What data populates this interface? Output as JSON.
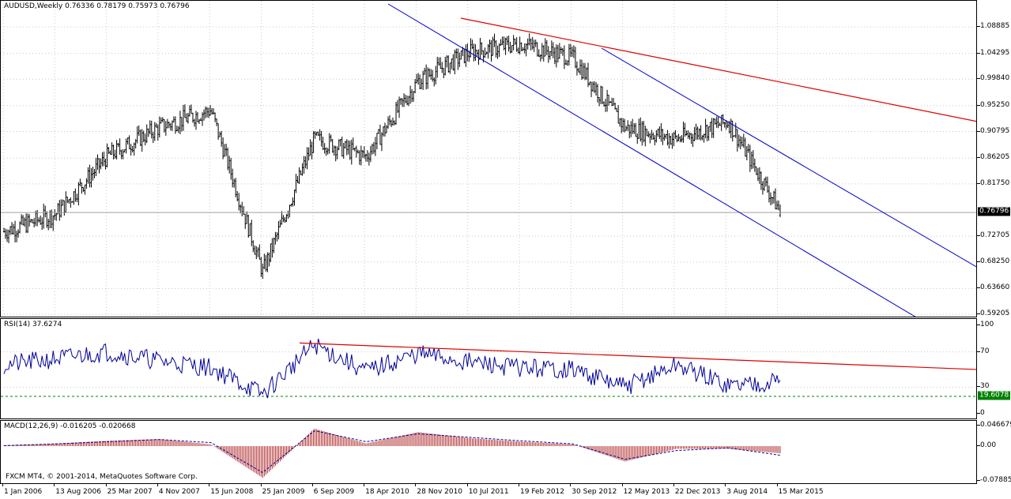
{
  "main": {
    "title": "AUDUSD,Weekly  0.76336 0.78179 0.75973 0.76796",
    "price_labels": [
      "1.08885",
      "1.04295",
      "0.99840",
      "0.95250",
      "0.90795",
      "0.86205",
      "0.81750",
      "0.72705",
      "0.68250",
      "0.63660",
      "0.59205"
    ],
    "current_price": "0.76796",
    "colors": {
      "candles": "#000000",
      "channel": "#0000cc",
      "resistance": "#dd0000",
      "grid": "#c8c8c8",
      "badge_bg": "#000000",
      "badge_fg": "#ffffff"
    }
  },
  "rsi": {
    "title": "RSI(14) 37.6274",
    "levels": [
      "100",
      "70",
      "30",
      "0"
    ],
    "current_value": "19.6078",
    "colors": {
      "line": "#000099",
      "trend": "#dd0000",
      "level_dash": "#008000",
      "badge_bg": "#008000"
    }
  },
  "macd": {
    "title": "MACD(12,26,9) -0.016205 -0.020668",
    "levels": [
      "0.046679",
      "0.00",
      "-0.078852"
    ],
    "copyright": "FXCM MT4, © 2001-2014, MetaQuotes Software Corp.",
    "colors": {
      "hist": "#a00000",
      "signal": "#000099"
    }
  },
  "time_axis": [
    "1 Jan 2006",
    "13 Aug 2006",
    "25 Mar 2007",
    "4 Nov 2007",
    "15 Jun 2008",
    "25 Jan 2009",
    "6 Sep 2009",
    "18 Apr 2010",
    "28 Nov 2010",
    "10 Jul 2011",
    "19 Feb 2012",
    "30 Sep 2012",
    "12 May 2013",
    "22 Dec 2013",
    "3 Aug 2014",
    "15 Mar 2015"
  ],
  "chart_data": [
    {
      "type": "candlestick",
      "title": "AUDUSD,Weekly",
      "x": [
        "1 Jan 2006",
        "13 Aug 2006",
        "25 Mar 2007",
        "4 Nov 2007",
        "15 Jun 2008",
        "25 Jan 2009",
        "6 Sep 2009",
        "18 Apr 2010",
        "28 Nov 2010",
        "10 Jul 2011",
        "19 Feb 2012",
        "30 Sep 2012",
        "12 May 2013",
        "22 Dec 2013",
        "3 Aug 2014",
        "15 Mar 2015"
      ],
      "close": [
        0.735,
        0.765,
        0.865,
        0.915,
        0.945,
        0.665,
        0.895,
        0.865,
        0.995,
        1.045,
        1.06,
        1.035,
        0.915,
        0.895,
        0.925,
        0.77
      ],
      "last": {
        "open": 0.76336,
        "high": 0.78179,
        "low": 0.75973,
        "close": 0.76796
      },
      "ylim": [
        0.59205,
        1.08885
      ]
    },
    {
      "type": "line",
      "title": "RSI(14) 37.6274",
      "x": [
        "1 Jan 2006",
        "13 Aug 2006",
        "25 Mar 2007",
        "4 Nov 2007",
        "15 Jun 2008",
        "25 Jan 2009",
        "6 Sep 2009",
        "18 Apr 2010",
        "28 Nov 2010",
        "10 Jul 2011",
        "19 Feb 2012",
        "30 Sep 2012",
        "12 May 2013",
        "22 Dec 2013",
        "3 Aug 2014",
        "15 Mar 2015"
      ],
      "values": [
        55,
        62,
        70,
        60,
        52,
        22,
        78,
        48,
        68,
        58,
        52,
        50,
        30,
        55,
        32,
        37.6274
      ],
      "ylim": [
        0,
        100
      ]
    },
    {
      "type": "bar",
      "title": "MACD(12,26,9) -0.016205 -0.020668",
      "x": [
        "1 Jan 2006",
        "13 Aug 2006",
        "25 Mar 2007",
        "4 Nov 2007",
        "15 Jun 2008",
        "25 Jan 2009",
        "6 Sep 2009",
        "18 Apr 2010",
        "28 Nov 2010",
        "10 Jul 2011",
        "19 Feb 2012",
        "30 Sep 2012",
        "12 May 2013",
        "22 Dec 2013",
        "3 Aug 2014",
        "15 Mar 2015"
      ],
      "values": [
        0.002,
        0.006,
        0.012,
        0.016,
        0.004,
        -0.072,
        0.04,
        0.006,
        0.032,
        0.018,
        0.01,
        0.004,
        -0.035,
        -0.006,
        -0.006,
        -0.016205
      ],
      "signal": [
        0.001,
        0.005,
        0.01,
        0.015,
        0.008,
        -0.06,
        0.035,
        0.01,
        0.028,
        0.02,
        0.012,
        0.005,
        -0.03,
        -0.01,
        -0.004,
        -0.020668
      ],
      "ylim": [
        -0.078852,
        0.046679
      ]
    }
  ]
}
